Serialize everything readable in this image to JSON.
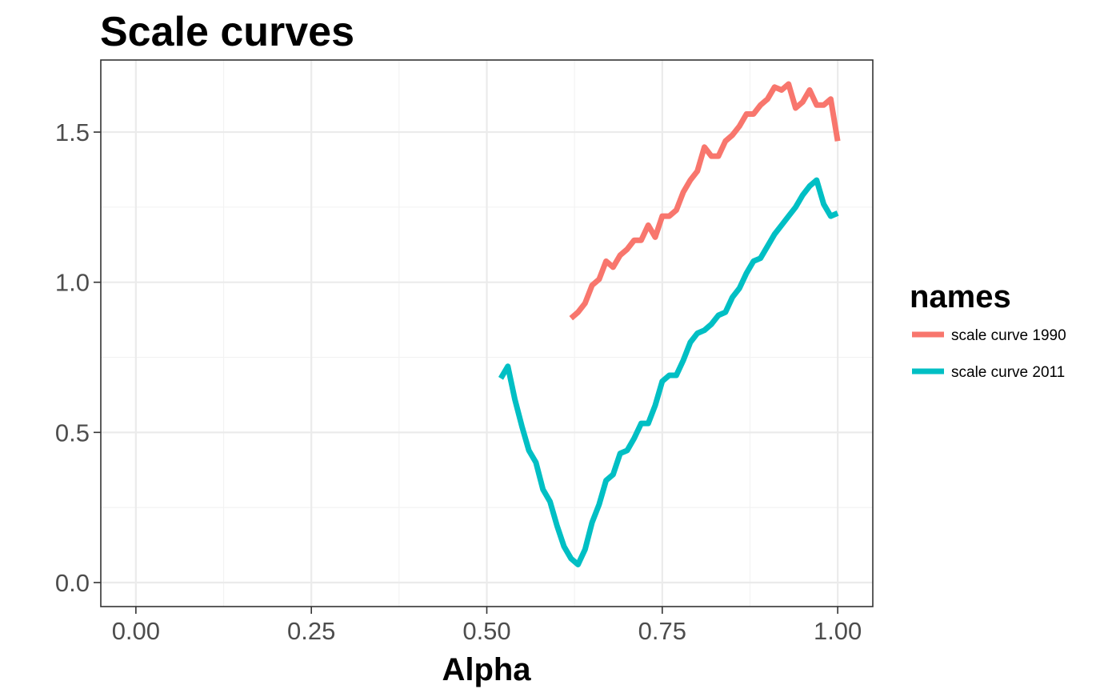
{
  "chart_data": {
    "type": "line",
    "title": "Scale curves",
    "xlabel": "Alpha",
    "ylabel": "",
    "xlim": [
      -0.05,
      1.05
    ],
    "ylim": [
      -0.08,
      1.74
    ],
    "x_ticks": [
      0.0,
      0.25,
      0.5,
      0.75,
      1.0
    ],
    "x_tick_labels": [
      "0.00",
      "0.25",
      "0.50",
      "0.75",
      "1.00"
    ],
    "y_ticks": [
      0.0,
      0.5,
      1.0,
      1.5
    ],
    "y_tick_labels": [
      "0.0",
      "0.5",
      "1.0",
      "1.5"
    ],
    "grid": true,
    "legend": {
      "title": "names",
      "position": "right"
    },
    "series": [
      {
        "name": "scale curve 1990",
        "color": "#F8766D",
        "x": [
          0.62,
          0.63,
          0.64,
          0.65,
          0.66,
          0.67,
          0.68,
          0.69,
          0.7,
          0.71,
          0.72,
          0.73,
          0.74,
          0.75,
          0.76,
          0.77,
          0.78,
          0.79,
          0.8,
          0.81,
          0.82,
          0.83,
          0.84,
          0.85,
          0.86,
          0.87,
          0.88,
          0.89,
          0.9,
          0.91,
          0.92,
          0.93,
          0.94,
          0.95,
          0.96,
          0.97,
          0.98,
          0.99,
          1.0
        ],
        "y": [
          0.88,
          0.9,
          0.93,
          0.99,
          1.01,
          1.07,
          1.05,
          1.09,
          1.11,
          1.14,
          1.14,
          1.19,
          1.15,
          1.22,
          1.22,
          1.24,
          1.3,
          1.34,
          1.37,
          1.45,
          1.42,
          1.42,
          1.47,
          1.49,
          1.52,
          1.56,
          1.56,
          1.59,
          1.61,
          1.65,
          1.64,
          1.66,
          1.58,
          1.6,
          1.64,
          1.59,
          1.59,
          1.61,
          1.47
        ]
      },
      {
        "name": "scale curve 2011",
        "color": "#00BFC4",
        "x": [
          0.52,
          0.53,
          0.54,
          0.55,
          0.56,
          0.57,
          0.58,
          0.59,
          0.6,
          0.61,
          0.62,
          0.63,
          0.64,
          0.65,
          0.66,
          0.67,
          0.68,
          0.69,
          0.7,
          0.71,
          0.72,
          0.73,
          0.74,
          0.75,
          0.76,
          0.77,
          0.78,
          0.79,
          0.8,
          0.81,
          0.82,
          0.83,
          0.84,
          0.85,
          0.86,
          0.87,
          0.88,
          0.89,
          0.9,
          0.91,
          0.92,
          0.93,
          0.94,
          0.95,
          0.96,
          0.97,
          0.98,
          0.99,
          1.0
        ],
        "y": [
          0.68,
          0.72,
          0.61,
          0.52,
          0.44,
          0.4,
          0.31,
          0.27,
          0.19,
          0.12,
          0.08,
          0.06,
          0.11,
          0.2,
          0.26,
          0.34,
          0.36,
          0.43,
          0.44,
          0.48,
          0.53,
          0.53,
          0.59,
          0.67,
          0.69,
          0.69,
          0.74,
          0.8,
          0.83,
          0.84,
          0.86,
          0.89,
          0.9,
          0.95,
          0.98,
          1.03,
          1.07,
          1.08,
          1.12,
          1.16,
          1.19,
          1.22,
          1.25,
          1.29,
          1.32,
          1.34,
          1.26,
          1.22,
          1.23
        ]
      }
    ]
  }
}
